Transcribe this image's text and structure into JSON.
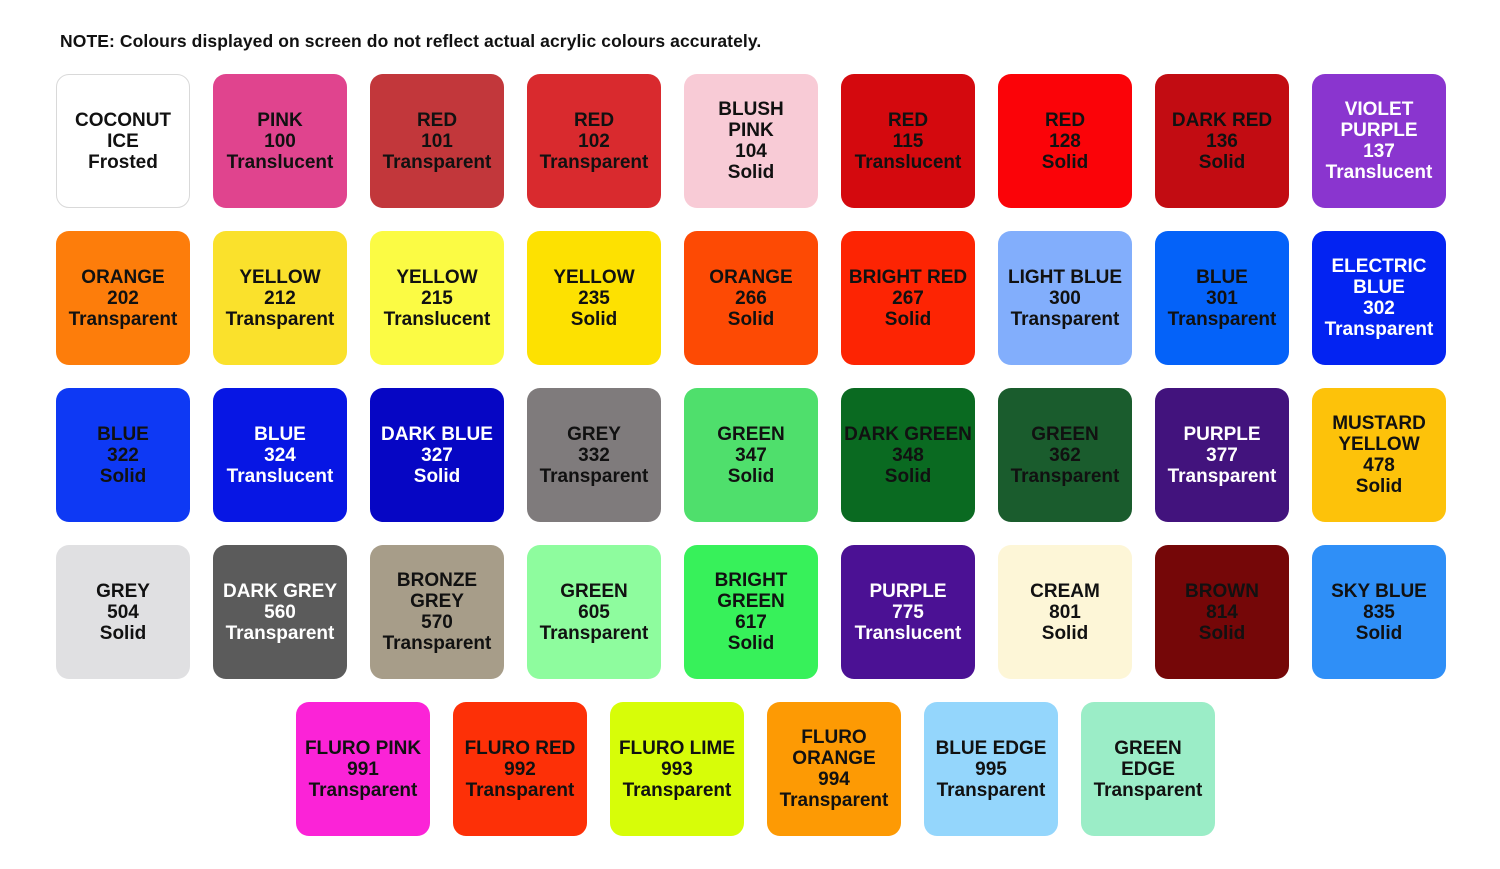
{
  "note": "NOTE: Colours displayed on screen do not reflect actual acrylic colours accurately.",
  "rows": [
    [
      {
        "lines": [
          "COCONUT",
          "ICE",
          "Frosted"
        ],
        "color": "#ffffff",
        "text": "#111111"
      },
      {
        "lines": [
          "PINK",
          "100",
          "Translucent"
        ],
        "color": "#e0448e",
        "text": "#111111"
      },
      {
        "lines": [
          "RED",
          "101",
          "Transparent"
        ],
        "color": "#c2373b",
        "text": "#111111"
      },
      {
        "lines": [
          "RED",
          "102",
          "Transparent"
        ],
        "color": "#d92a2e",
        "text": "#111111"
      },
      {
        "lines": [
          "BLUSH",
          "PINK",
          "104",
          "Solid"
        ],
        "color": "#f8cbd6",
        "text": "#111111"
      },
      {
        "lines": [
          "RED",
          "115",
          "Translucent"
        ],
        "color": "#d4090e",
        "text": "#111111"
      },
      {
        "lines": [
          "RED",
          "128",
          "Solid"
        ],
        "color": "#fb0308",
        "text": "#111111"
      },
      {
        "lines": [
          "DARK RED",
          "136",
          "Solid"
        ],
        "color": "#c20c12",
        "text": "#111111"
      },
      {
        "lines": [
          "VIOLET",
          "PURPLE",
          "137",
          "Translucent"
        ],
        "color": "#8a35cf",
        "text": "#ffffff"
      }
    ],
    [
      {
        "lines": [
          "ORANGE",
          "202",
          "Transparent"
        ],
        "color": "#fd7d0b",
        "text": "#111111"
      },
      {
        "lines": [
          "YELLOW",
          "212",
          "Transparent"
        ],
        "color": "#fae12c",
        "text": "#111111"
      },
      {
        "lines": [
          "YELLOW",
          "215",
          "Translucent"
        ],
        "color": "#fbfb44",
        "text": "#111111"
      },
      {
        "lines": [
          "YELLOW",
          "235",
          "Solid"
        ],
        "color": "#fde101",
        "text": "#111111"
      },
      {
        "lines": [
          "ORANGE",
          "266",
          "Solid"
        ],
        "color": "#fd4a04",
        "text": "#111111"
      },
      {
        "lines": [
          "BRIGHT RED",
          "267",
          "Solid"
        ],
        "color": "#fd2403",
        "text": "#111111"
      },
      {
        "lines": [
          "LIGHT BLUE",
          "300",
          "Transparent"
        ],
        "color": "#82aefc",
        "text": "#111111"
      },
      {
        "lines": [
          "BLUE",
          "301",
          "Transparent"
        ],
        "color": "#0462f9",
        "text": "#111111"
      },
      {
        "lines": [
          "ELECTRIC",
          "BLUE",
          "302",
          "Transparent"
        ],
        "color": "#0323f2",
        "text": "#ffffff"
      }
    ],
    [
      {
        "lines": [
          "BLUE",
          "322",
          "Solid"
        ],
        "color": "#0e39f4",
        "text": "#111111"
      },
      {
        "lines": [
          "BLUE",
          "324",
          "Translucent"
        ],
        "color": "#0716e4",
        "text": "#ffffff"
      },
      {
        "lines": [
          "DARK BLUE",
          "327",
          "Solid"
        ],
        "color": "#0606c4",
        "text": "#ffffff"
      },
      {
        "lines": [
          "GREY",
          "332",
          "Transparent"
        ],
        "color": "#7f7b7c",
        "text": "#111111"
      },
      {
        "lines": [
          "GREEN",
          "347",
          "Solid"
        ],
        "color": "#4fdf6c",
        "text": "#111111"
      },
      {
        "lines": [
          "DARK GREEN",
          "348",
          "Solid"
        ],
        "color": "#0a6a21",
        "text": "#111111"
      },
      {
        "lines": [
          "GREEN",
          "362",
          "Transparent"
        ],
        "color": "#1a5c2d",
        "text": "#111111"
      },
      {
        "lines": [
          "PURPLE",
          "377",
          "Transparent"
        ],
        "color": "#42137d",
        "text": "#ffffff"
      },
      {
        "lines": [
          "MUSTARD",
          "YELLOW",
          "478",
          "Solid"
        ],
        "color": "#fdc20a",
        "text": "#111111"
      }
    ],
    [
      {
        "lines": [
          "GREY",
          "504",
          "Solid"
        ],
        "color": "#e0e0e2",
        "text": "#111111"
      },
      {
        "lines": [
          "DARK GREY",
          "560",
          "Transparent"
        ],
        "color": "#5b5b5b",
        "text": "#ffffff"
      },
      {
        "lines": [
          "BRONZE",
          "GREY",
          "570",
          "Transparent"
        ],
        "color": "#a79d89",
        "text": "#111111"
      },
      {
        "lines": [
          "GREEN",
          "605",
          "Transparent"
        ],
        "color": "#8efc9e",
        "text": "#111111"
      },
      {
        "lines": [
          "BRIGHT",
          "GREEN",
          "617",
          "Solid"
        ],
        "color": "#37f15a",
        "text": "#111111"
      },
      {
        "lines": [
          "PURPLE",
          "775",
          "Translucent"
        ],
        "color": "#4b1194",
        "text": "#ffffff"
      },
      {
        "lines": [
          "CREAM",
          "801",
          "Solid"
        ],
        "color": "#fdf6d7",
        "text": "#111111"
      },
      {
        "lines": [
          "BROWN",
          "814",
          "Solid"
        ],
        "color": "#750708",
        "text": "#111111"
      },
      {
        "lines": [
          "SKY BLUE",
          "835",
          "Solid"
        ],
        "color": "#2f8ff7",
        "text": "#111111"
      }
    ],
    [
      {
        "lines": [
          "FLURO PINK",
          "991",
          "Transparent"
        ],
        "color": "#fb23d7",
        "text": "#111111"
      },
      {
        "lines": [
          "FLURO RED",
          "992",
          "Transparent"
        ],
        "color": "#fd3007",
        "text": "#111111"
      },
      {
        "lines": [
          "FLURO LIME",
          "993",
          "Transparent"
        ],
        "color": "#d7fd08",
        "text": "#111111"
      },
      {
        "lines": [
          "FLURO",
          "ORANGE",
          "994",
          "Transparent"
        ],
        "color": "#fd9a04",
        "text": "#111111"
      },
      {
        "lines": [
          "BLUE EDGE",
          "995",
          "Transparent"
        ],
        "color": "#94d6fc",
        "text": "#111111"
      },
      {
        "lines": [
          "GREEN",
          "EDGE",
          "Transparent"
        ],
        "color": "#9bedc7",
        "text": "#111111"
      }
    ]
  ]
}
